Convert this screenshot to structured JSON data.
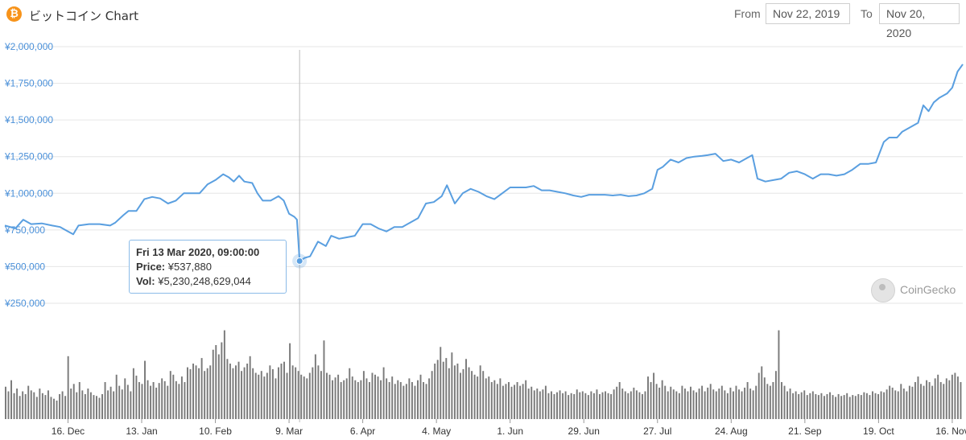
{
  "header": {
    "logo_glyph": "₿",
    "title": "ビットコイン Chart",
    "from_label": "From",
    "from_value": "Nov 22, 2019",
    "to_label": "To",
    "to_value": "Nov 20, 2020"
  },
  "tooltip": {
    "date": "Fri 13 Mar 2020, 09:00:00",
    "price_label": "Price:",
    "price_value": "¥537,880",
    "vol_label": "Vol:",
    "vol_value": "¥5,230,248,629,044"
  },
  "watermark": {
    "text": "CoinGecko"
  },
  "colors": {
    "line": "#5a9fe0",
    "volume": "#7a7a7a",
    "grid": "#e6e6e6",
    "ytick": "#4a90d9",
    "crosshair": "#bbbbbb"
  },
  "chart_data": {
    "type": "line",
    "title": "ビットコイン Chart",
    "x_range": [
      "2019-11-22",
      "2020-11-20"
    ],
    "y_range": [
      250000,
      2000000
    ],
    "y_ticks": [
      {
        "value": 2000000,
        "label": "¥2,000,000"
      },
      {
        "value": 1750000,
        "label": "¥1,750,000"
      },
      {
        "value": 1500000,
        "label": "¥1,500,000"
      },
      {
        "value": 1250000,
        "label": "¥1,250,000"
      },
      {
        "value": 1000000,
        "label": "¥1,000,000"
      },
      {
        "value": 750000,
        "label": "¥750,000"
      },
      {
        "value": 500000,
        "label": "¥500,000"
      },
      {
        "value": 250000,
        "label": "¥250,000"
      }
    ],
    "x_ticks": [
      {
        "date": "2019-12-16",
        "label": "16. Dec"
      },
      {
        "date": "2020-01-13",
        "label": "13. Jan"
      },
      {
        "date": "2020-02-10",
        "label": "10. Feb"
      },
      {
        "date": "2020-03-09",
        "label": "9. Mar"
      },
      {
        "date": "2020-04-06",
        "label": "6. Apr"
      },
      {
        "date": "2020-05-04",
        "label": "4. May"
      },
      {
        "date": "2020-06-01",
        "label": "1. Jun"
      },
      {
        "date": "2020-06-29",
        "label": "29. Jun"
      },
      {
        "date": "2020-07-27",
        "label": "27. Jul"
      },
      {
        "date": "2020-08-24",
        "label": "24. Aug"
      },
      {
        "date": "2020-09-21",
        "label": "21. Sep"
      },
      {
        "date": "2020-10-19",
        "label": "19. Oct"
      },
      {
        "date": "2020-11-16",
        "label": "16. Nov"
      }
    ],
    "highlight": {
      "date": "2020-03-13",
      "price": 537880
    },
    "series": [
      {
        "points": [
          [
            "2019-11-22",
            780000
          ],
          [
            "2019-11-26",
            760000
          ],
          [
            "2019-11-29",
            820000
          ],
          [
            "2019-12-02",
            790000
          ],
          [
            "2019-12-06",
            795000
          ],
          [
            "2019-12-10",
            780000
          ],
          [
            "2019-12-13",
            770000
          ],
          [
            "2019-12-16",
            740000
          ],
          [
            "2019-12-18",
            720000
          ],
          [
            "2019-12-20",
            780000
          ],
          [
            "2019-12-24",
            790000
          ],
          [
            "2019-12-28",
            790000
          ],
          [
            "2020-01-01",
            780000
          ],
          [
            "2020-01-03",
            800000
          ],
          [
            "2020-01-06",
            850000
          ],
          [
            "2020-01-08",
            880000
          ],
          [
            "2020-01-11",
            880000
          ],
          [
            "2020-01-14",
            960000
          ],
          [
            "2020-01-17",
            975000
          ],
          [
            "2020-01-20",
            965000
          ],
          [
            "2020-01-23",
            930000
          ],
          [
            "2020-01-26",
            950000
          ],
          [
            "2020-01-29",
            1000000
          ],
          [
            "2020-02-01",
            1000000
          ],
          [
            "2020-02-04",
            1000000
          ],
          [
            "2020-02-07",
            1060000
          ],
          [
            "2020-02-10",
            1090000
          ],
          [
            "2020-02-13",
            1130000
          ],
          [
            "2020-02-15",
            1110000
          ],
          [
            "2020-02-17",
            1080000
          ],
          [
            "2020-02-19",
            1120000
          ],
          [
            "2020-02-21",
            1080000
          ],
          [
            "2020-02-24",
            1070000
          ],
          [
            "2020-02-26",
            1000000
          ],
          [
            "2020-02-28",
            950000
          ],
          [
            "2020-03-02",
            950000
          ],
          [
            "2020-03-05",
            980000
          ],
          [
            "2020-03-07",
            950000
          ],
          [
            "2020-03-09",
            860000
          ],
          [
            "2020-03-11",
            840000
          ],
          [
            "2020-03-12",
            820000
          ],
          [
            "2020-03-13",
            537880
          ],
          [
            "2020-03-15",
            560000
          ],
          [
            "2020-03-17",
            570000
          ],
          [
            "2020-03-20",
            670000
          ],
          [
            "2020-03-23",
            640000
          ],
          [
            "2020-03-25",
            710000
          ],
          [
            "2020-03-28",
            690000
          ],
          [
            "2020-03-31",
            700000
          ],
          [
            "2020-04-03",
            710000
          ],
          [
            "2020-04-06",
            790000
          ],
          [
            "2020-04-09",
            790000
          ],
          [
            "2020-04-12",
            760000
          ],
          [
            "2020-04-15",
            740000
          ],
          [
            "2020-04-18",
            770000
          ],
          [
            "2020-04-21",
            770000
          ],
          [
            "2020-04-24",
            800000
          ],
          [
            "2020-04-27",
            830000
          ],
          [
            "2020-04-30",
            930000
          ],
          [
            "2020-05-03",
            940000
          ],
          [
            "2020-05-06",
            980000
          ],
          [
            "2020-05-08",
            1055000
          ],
          [
            "2020-05-11",
            930000
          ],
          [
            "2020-05-14",
            1000000
          ],
          [
            "2020-05-17",
            1030000
          ],
          [
            "2020-05-20",
            1010000
          ],
          [
            "2020-05-23",
            980000
          ],
          [
            "2020-05-26",
            960000
          ],
          [
            "2020-05-29",
            1000000
          ],
          [
            "2020-06-01",
            1040000
          ],
          [
            "2020-06-04",
            1040000
          ],
          [
            "2020-06-07",
            1040000
          ],
          [
            "2020-06-10",
            1050000
          ],
          [
            "2020-06-13",
            1020000
          ],
          [
            "2020-06-16",
            1020000
          ],
          [
            "2020-06-19",
            1010000
          ],
          [
            "2020-06-22",
            1000000
          ],
          [
            "2020-06-25",
            985000
          ],
          [
            "2020-06-28",
            975000
          ],
          [
            "2020-07-01",
            990000
          ],
          [
            "2020-07-04",
            990000
          ],
          [
            "2020-07-07",
            990000
          ],
          [
            "2020-07-10",
            985000
          ],
          [
            "2020-07-13",
            990000
          ],
          [
            "2020-07-16",
            980000
          ],
          [
            "2020-07-19",
            985000
          ],
          [
            "2020-07-22",
            1000000
          ],
          [
            "2020-07-25",
            1030000
          ],
          [
            "2020-07-27",
            1160000
          ],
          [
            "2020-07-29",
            1180000
          ],
          [
            "2020-08-01",
            1230000
          ],
          [
            "2020-08-04",
            1210000
          ],
          [
            "2020-08-07",
            1240000
          ],
          [
            "2020-08-10",
            1250000
          ],
          [
            "2020-08-13",
            1255000
          ],
          [
            "2020-08-15",
            1260000
          ],
          [
            "2020-08-18",
            1270000
          ],
          [
            "2020-08-21",
            1220000
          ],
          [
            "2020-08-24",
            1230000
          ],
          [
            "2020-08-27",
            1210000
          ],
          [
            "2020-08-30",
            1240000
          ],
          [
            "2020-09-01",
            1260000
          ],
          [
            "2020-09-03",
            1100000
          ],
          [
            "2020-09-06",
            1080000
          ],
          [
            "2020-09-09",
            1090000
          ],
          [
            "2020-09-12",
            1100000
          ],
          [
            "2020-09-15",
            1140000
          ],
          [
            "2020-09-18",
            1150000
          ],
          [
            "2020-09-21",
            1130000
          ],
          [
            "2020-09-24",
            1100000
          ],
          [
            "2020-09-27",
            1130000
          ],
          [
            "2020-09-30",
            1130000
          ],
          [
            "2020-10-03",
            1120000
          ],
          [
            "2020-10-06",
            1130000
          ],
          [
            "2020-10-09",
            1160000
          ],
          [
            "2020-10-12",
            1200000
          ],
          [
            "2020-10-15",
            1200000
          ],
          [
            "2020-10-18",
            1210000
          ],
          [
            "2020-10-21",
            1350000
          ],
          [
            "2020-10-23",
            1380000
          ],
          [
            "2020-10-26",
            1380000
          ],
          [
            "2020-10-28",
            1420000
          ],
          [
            "2020-10-31",
            1450000
          ],
          [
            "2020-11-03",
            1480000
          ],
          [
            "2020-11-05",
            1600000
          ],
          [
            "2020-11-07",
            1560000
          ],
          [
            "2020-11-09",
            1620000
          ],
          [
            "2020-11-11",
            1650000
          ],
          [
            "2020-11-14",
            1680000
          ],
          [
            "2020-11-16",
            1720000
          ],
          [
            "2020-11-18",
            1830000
          ],
          [
            "2020-11-20",
            1880000
          ]
        ]
      }
    ],
    "volume_relative": [
      0.35,
      0.3,
      0.42,
      0.28,
      0.33,
      0.25,
      0.3,
      0.27,
      0.36,
      0.31,
      0.29,
      0.24,
      0.33,
      0.28,
      0.26,
      0.31,
      0.24,
      0.22,
      0.2,
      0.27,
      0.3,
      0.25,
      0.68,
      0.33,
      0.38,
      0.29,
      0.4,
      0.31,
      0.27,
      0.33,
      0.29,
      0.26,
      0.25,
      0.23,
      0.27,
      0.4,
      0.31,
      0.35,
      0.3,
      0.48,
      0.36,
      0.32,
      0.44,
      0.37,
      0.3,
      0.55,
      0.47,
      0.4,
      0.38,
      0.63,
      0.42,
      0.36,
      0.4,
      0.34,
      0.39,
      0.44,
      0.41,
      0.36,
      0.52,
      0.48,
      0.41,
      0.38,
      0.46,
      0.4,
      0.56,
      0.54,
      0.6,
      0.58,
      0.55,
      0.66,
      0.52,
      0.55,
      0.58,
      0.75,
      0.8,
      0.7,
      0.83,
      0.96,
      0.65,
      0.6,
      0.55,
      0.58,
      0.62,
      0.52,
      0.56,
      0.6,
      0.68,
      0.55,
      0.5,
      0.48,
      0.52,
      0.46,
      0.5,
      0.58,
      0.54,
      0.44,
      0.56,
      0.6,
      0.62,
      0.5,
      0.82,
      0.58,
      0.56,
      0.52,
      0.48,
      0.46,
      0.44,
      0.5,
      0.56,
      0.7,
      0.58,
      0.52,
      0.85,
      0.5,
      0.48,
      0.42,
      0.45,
      0.48,
      0.4,
      0.42,
      0.44,
      0.55,
      0.46,
      0.42,
      0.4,
      0.42,
      0.52,
      0.44,
      0.4,
      0.5,
      0.48,
      0.46,
      0.42,
      0.56,
      0.44,
      0.4,
      0.46,
      0.38,
      0.42,
      0.4,
      0.36,
      0.38,
      0.44,
      0.4,
      0.36,
      0.42,
      0.48,
      0.4,
      0.38,
      0.44,
      0.52,
      0.6,
      0.64,
      0.78,
      0.62,
      0.66,
      0.55,
      0.72,
      0.58,
      0.6,
      0.5,
      0.54,
      0.65,
      0.56,
      0.52,
      0.48,
      0.46,
      0.58,
      0.52,
      0.44,
      0.46,
      0.4,
      0.42,
      0.38,
      0.44,
      0.36,
      0.38,
      0.4,
      0.35,
      0.37,
      0.4,
      0.36,
      0.38,
      0.42,
      0.33,
      0.35,
      0.31,
      0.33,
      0.3,
      0.32,
      0.36,
      0.28,
      0.3,
      0.27,
      0.29,
      0.31,
      0.28,
      0.3,
      0.26,
      0.28,
      0.27,
      0.32,
      0.29,
      0.3,
      0.28,
      0.26,
      0.3,
      0.28,
      0.32,
      0.27,
      0.29,
      0.3,
      0.28,
      0.27,
      0.32,
      0.35,
      0.4,
      0.33,
      0.3,
      0.28,
      0.3,
      0.34,
      0.31,
      0.29,
      0.27,
      0.3,
      0.46,
      0.4,
      0.5,
      0.38,
      0.34,
      0.42,
      0.36,
      0.3,
      0.35,
      0.32,
      0.3,
      0.28,
      0.36,
      0.33,
      0.3,
      0.35,
      0.31,
      0.29,
      0.33,
      0.36,
      0.3,
      0.34,
      0.38,
      0.32,
      0.3,
      0.33,
      0.36,
      0.31,
      0.28,
      0.34,
      0.3,
      0.36,
      0.32,
      0.3,
      0.34,
      0.4,
      0.33,
      0.31,
      0.36,
      0.5,
      0.57,
      0.45,
      0.38,
      0.36,
      0.4,
      0.52,
      0.96,
      0.4,
      0.36,
      0.3,
      0.33,
      0.28,
      0.3,
      0.27,
      0.29,
      0.31,
      0.26,
      0.28,
      0.3,
      0.27,
      0.26,
      0.28,
      0.25,
      0.27,
      0.29,
      0.26,
      0.24,
      0.27,
      0.25,
      0.26,
      0.28,
      0.24,
      0.26,
      0.25,
      0.27,
      0.26,
      0.29,
      0.28,
      0.26,
      0.3,
      0.28,
      0.27,
      0.3,
      0.29,
      0.32,
      0.36,
      0.34,
      0.31,
      0.3,
      0.38,
      0.33,
      0.3,
      0.36,
      0.35,
      0.4,
      0.46,
      0.38,
      0.36,
      0.42,
      0.4,
      0.36,
      0.44,
      0.48,
      0.4,
      0.38,
      0.44,
      0.42,
      0.48,
      0.5,
      0.46,
      0.4
    ]
  }
}
